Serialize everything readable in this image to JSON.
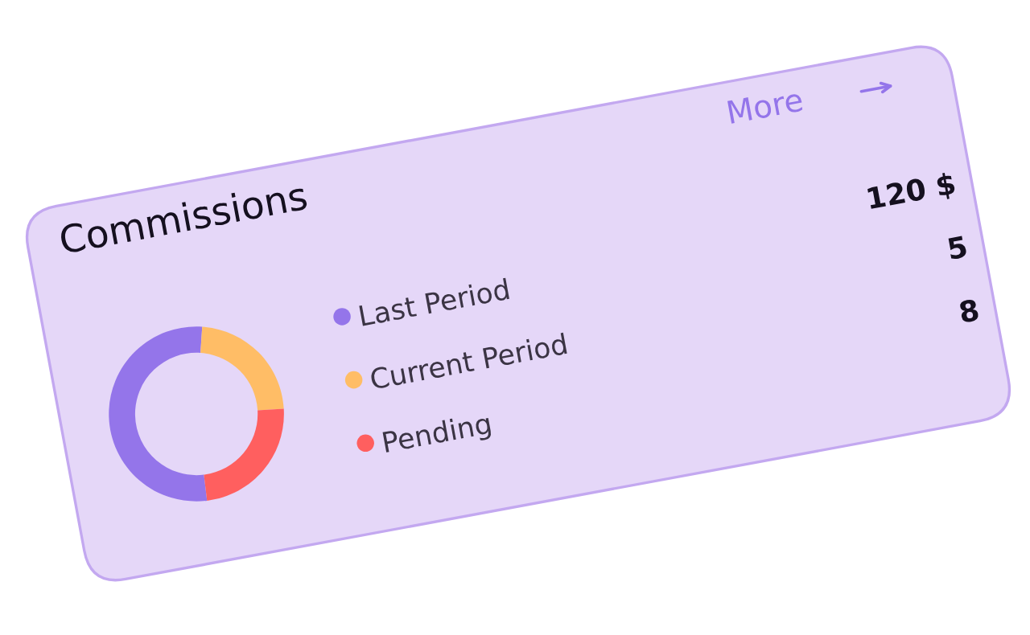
{
  "chart_data": {
    "type": "donut",
    "title": "Commissions",
    "categories": [
      "Last Period",
      "Current Period",
      "Pending"
    ],
    "values": [
      53,
      23,
      24
    ],
    "colors": [
      "#9475ea",
      "#ffbd66",
      "#ff5f5f"
    ],
    "annotations": [
      "More",
      "120 $",
      "5",
      "8"
    ],
    "legend": "right"
  }
}
